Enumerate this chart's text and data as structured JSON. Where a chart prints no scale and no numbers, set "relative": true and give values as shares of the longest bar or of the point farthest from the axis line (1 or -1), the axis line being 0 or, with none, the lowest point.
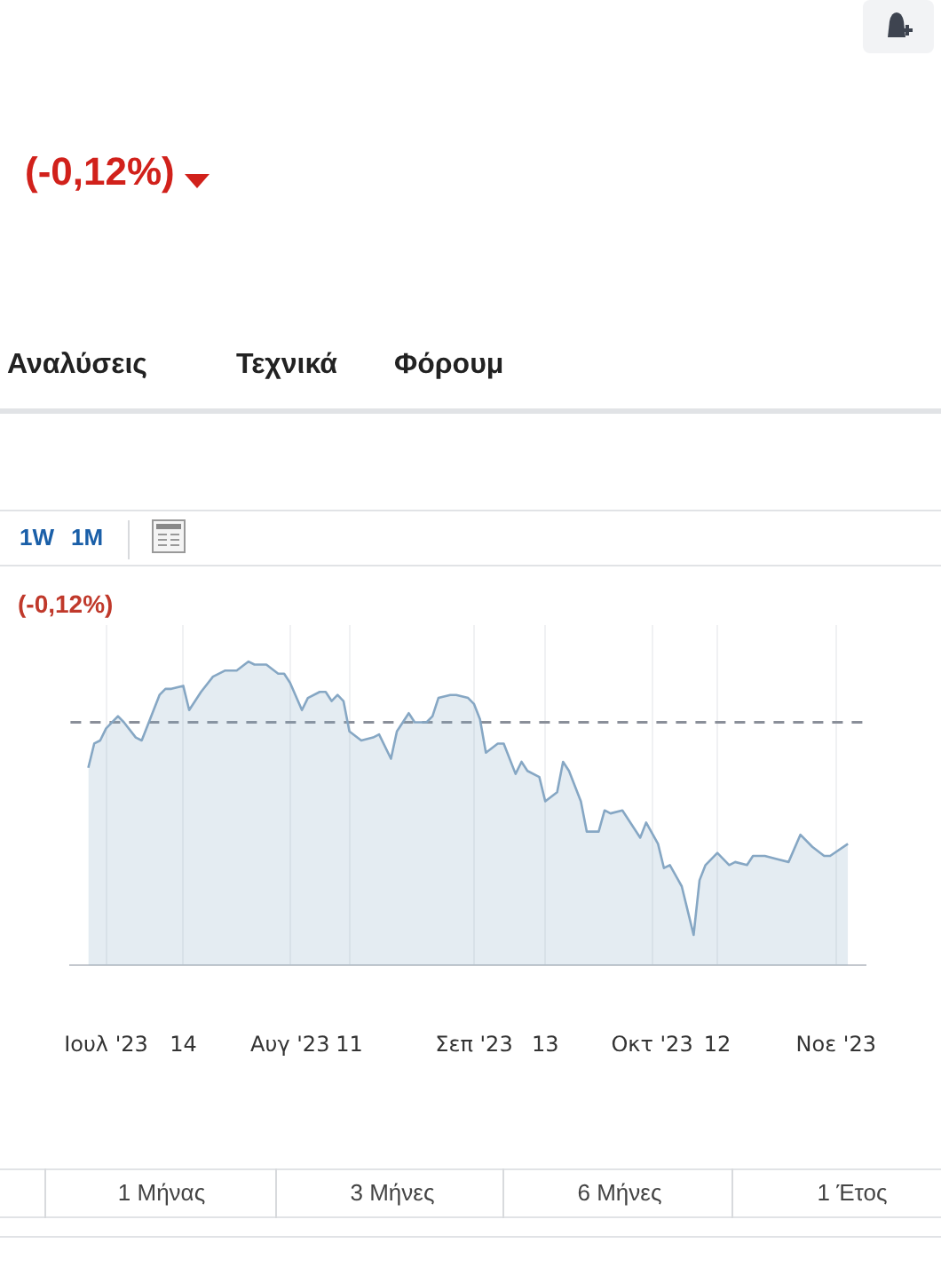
{
  "chart_data": {
    "type": "area",
    "relative": true,
    "marker": "none",
    "grid": "x",
    "x": [
      "2023-06-28",
      "2023-06-29",
      "2023-06-30",
      "2023-07-01",
      "2023-07-03",
      "2023-07-04",
      "2023-07-06",
      "2023-07-07",
      "2023-07-08",
      "2023-07-10",
      "2023-07-11",
      "2023-07-12",
      "2023-07-14",
      "2023-07-15",
      "2023-07-17",
      "2023-07-19",
      "2023-07-21",
      "2023-07-22",
      "2023-07-23",
      "2023-07-25",
      "2023-07-26",
      "2023-07-28",
      "2023-07-30",
      "2023-07-31",
      "2023-08-01",
      "2023-08-03",
      "2023-08-04",
      "2023-08-06",
      "2023-08-07",
      "2023-08-08",
      "2023-08-09",
      "2023-08-10",
      "2023-08-11",
      "2023-08-13",
      "2023-08-15",
      "2023-08-16",
      "2023-08-18",
      "2023-08-19",
      "2023-08-21",
      "2023-08-22",
      "2023-08-24",
      "2023-08-25",
      "2023-08-26",
      "2023-08-28",
      "2023-08-29",
      "2023-08-31",
      "2023-09-01",
      "2023-09-02",
      "2023-09-03",
      "2023-09-05",
      "2023-09-06",
      "2023-09-08",
      "2023-09-09",
      "2023-09-10",
      "2023-09-12",
      "2023-09-13",
      "2023-09-15",
      "2023-09-16",
      "2023-09-17",
      "2023-09-19",
      "2023-09-20",
      "2023-09-22",
      "2023-09-23",
      "2023-09-24",
      "2023-09-26",
      "2023-09-28",
      "2023-09-29",
      "2023-09-30",
      "2023-10-02",
      "2023-10-03",
      "2023-10-04",
      "2023-10-06",
      "2023-10-07",
      "2023-10-08",
      "2023-10-09",
      "2023-10-10",
      "2023-10-12",
      "2023-10-14",
      "2023-10-15",
      "2023-10-17",
      "2023-10-18",
      "2023-10-20",
      "2023-10-22",
      "2023-10-24",
      "2023-10-26",
      "2023-10-28",
      "2023-10-30",
      "2023-10-31",
      "2023-11-03"
    ],
    "series": [
      {
        "color": "#86a7c4",
        "values": [
          0.65,
          0.73,
          0.74,
          0.78,
          0.82,
          0.8,
          0.75,
          0.74,
          0.79,
          0.89,
          0.91,
          0.91,
          0.92,
          0.84,
          0.9,
          0.95,
          0.97,
          0.97,
          0.97,
          1,
          0.99,
          0.99,
          0.96,
          0.96,
          0.93,
          0.84,
          0.88,
          0.9,
          0.9,
          0.87,
          0.89,
          0.87,
          0.77,
          0.74,
          0.75,
          0.76,
          0.68,
          0.77,
          0.83,
          0.8,
          0.8,
          0.82,
          0.88,
          0.89,
          0.89,
          0.88,
          0.86,
          0.81,
          0.7,
          0.73,
          0.73,
          0.63,
          0.67,
          0.64,
          0.62,
          0.54,
          0.57,
          0.67,
          0.64,
          0.54,
          0.44,
          0.44,
          0.51,
          0.5,
          0.51,
          0.45,
          0.42,
          0.47,
          0.4,
          0.32,
          0.33,
          0.26,
          0.18,
          0.1,
          0.28,
          0.33,
          0.37,
          0.33,
          0.34,
          0.33,
          0.36,
          0.36,
          0.35,
          0.34,
          0.43,
          0.39,
          0.36,
          0.36,
          0.4
        ]
      }
    ],
    "xlim": [
      "2023-06-25",
      "2023-11-06"
    ],
    "xticks": [
      {
        "value": "2023-07-01",
        "label": "Ιουλ '23"
      },
      {
        "value": "2023-07-14",
        "label": "14"
      },
      {
        "value": "2023-08-01",
        "label": "Αυγ '23"
      },
      {
        "value": "2023-08-11",
        "label": "11"
      },
      {
        "value": "2023-09-01",
        "label": "Σεπ '23"
      },
      {
        "value": "2023-09-13",
        "label": "13"
      },
      {
        "value": "2023-10-01",
        "label": "Οκτ '23"
      },
      {
        "value": "2023-10-12",
        "label": "12"
      },
      {
        "value": "2023-11-01",
        "label": "Νοε '23"
      }
    ],
    "ref_lines": [
      {
        "axis": "y",
        "value": 0.8,
        "color": "#8a8f99",
        "line_style": "dashed"
      }
    ],
    "annotations": [
      "(-0,12%)",
      "Αναλύσεις",
      "Τεχνικά",
      "Φόρουμ",
      "1W",
      "1M",
      "(-0,12%)",
      "1 Μήνας",
      "3 Μήνες",
      "6 Μήνες",
      "1 Έτος"
    ]
  }
}
